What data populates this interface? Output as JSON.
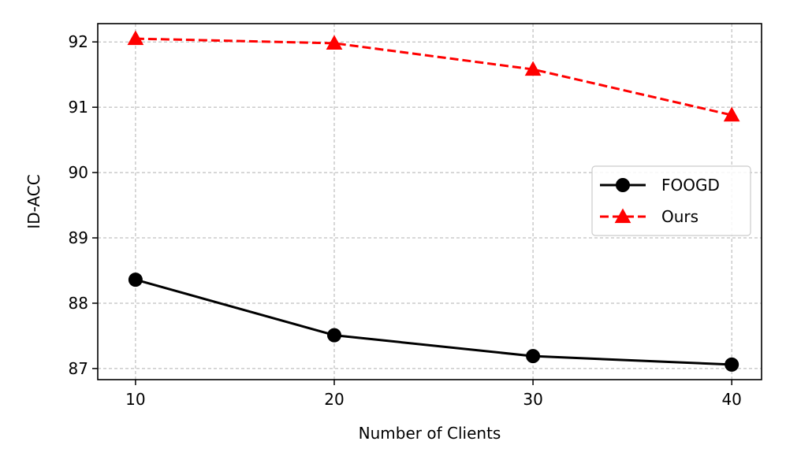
{
  "chart_data": {
    "type": "line",
    "xlabel": "Number of Clients",
    "ylabel": "ID-ACC",
    "x": [
      10,
      20,
      30,
      40
    ],
    "xticks": [
      "10",
      "20",
      "30",
      "40"
    ],
    "yticks": [
      "87",
      "88",
      "89",
      "90",
      "91",
      "92"
    ],
    "xlim": [
      8.1,
      41.5
    ],
    "ylim": [
      86.83,
      92.28
    ],
    "grid": true,
    "legend_position": "right",
    "series": [
      {
        "name": "FOOGD",
        "values": [
          88.36,
          87.51,
          87.19,
          87.06
        ],
        "color": "#000000",
        "marker": "circle",
        "linestyle": "solid"
      },
      {
        "name": "Ours",
        "values": [
          92.05,
          91.98,
          91.58,
          90.88
        ],
        "color": "#ff0000",
        "marker": "triangle",
        "linestyle": "dashed"
      }
    ]
  }
}
